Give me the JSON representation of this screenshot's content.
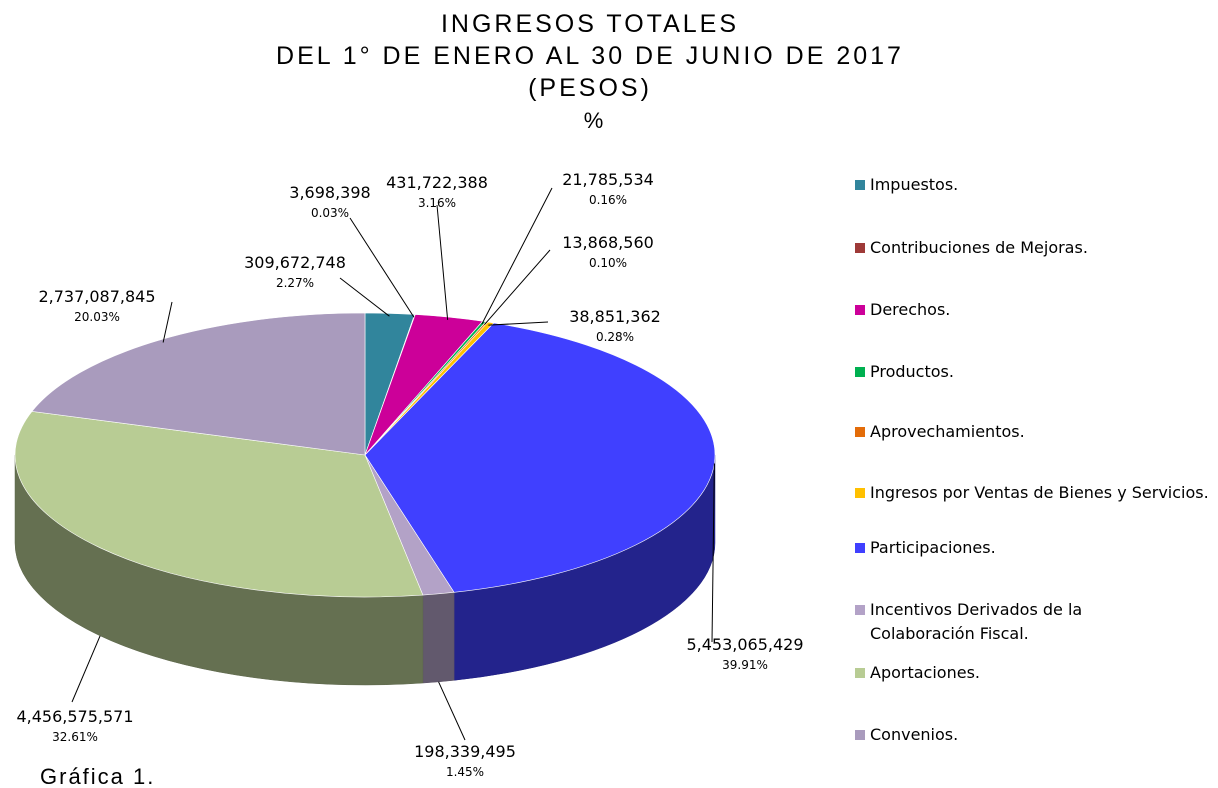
{
  "chart_data": {
    "type": "pie",
    "title_lines": [
      "INGRESOS TOTALES",
      "DEL 1° DE ENERO AL 30 DE JUNIO DE 2017",
      "(PESOS)"
    ],
    "subtitle": "%",
    "caption": "Gráfica 1.",
    "categories": [
      "Impuestos.",
      "Contribuciones de Mejoras.",
      "Derechos.",
      "Productos.",
      "Aprovechamientos.",
      "Ingresos por Ventas de Bienes y Servicios.",
      "Participaciones.",
      "Incentivos Derivados de la Colaboración Fiscal.",
      "Aportaciones.",
      "Convenios."
    ],
    "values": [
      309672748,
      3698398,
      431722388,
      21785534,
      13868560,
      38851362,
      5453065429,
      198339495,
      4456575571,
      2737087845
    ],
    "value_labels": [
      "309,672,748",
      "3,698,398",
      "431,722,388",
      "21,785,534",
      "13,868,560",
      "38,851,362",
      "5,453,065,429",
      "198,339,495",
      "4,456,575,571",
      "2,737,087,845"
    ],
    "percentages": [
      {
        "value": 2.27,
        "label": "2.27%"
      },
      {
        "value": 0.03,
        "label": "0.03%"
      },
      {
        "value": 3.16,
        "label": "3.16%"
      },
      {
        "value": 0.16,
        "label": "0.16%"
      },
      {
        "value": 0.1,
        "label": "0.10%"
      },
      {
        "value": 0.28,
        "label": "0.28%"
      },
      {
        "value": 39.91,
        "label": "39.91%"
      },
      {
        "value": 1.45,
        "label": "1.45%"
      },
      {
        "value": 32.61,
        "label": "32.61%"
      },
      {
        "value": 20.03,
        "label": "20.03%"
      }
    ],
    "colors": [
      "#31859c",
      "#9e3a38",
      "#cc0099",
      "#00b050",
      "#e36c09",
      "#ffc000",
      "#4040ff",
      "#b3a2c7",
      "#b8cc94",
      "#a99bbd"
    ],
    "legend": "right"
  }
}
